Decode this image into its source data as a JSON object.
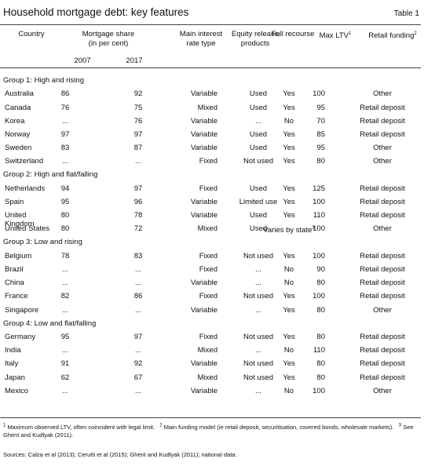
{
  "header": {
    "title": "Household mortgage debt: key features",
    "table_label": "Table 1"
  },
  "columns": {
    "country": "Country",
    "share": "Mortgage share",
    "share_unit": "(in per cent)",
    "year1": "2007",
    "year2": "2017",
    "interest_1": "Main interest",
    "interest_2": "rate type",
    "equity_1": "Equity release",
    "equity_2": "products",
    "recourse": "Full recourse",
    "ltv": "Max LTV",
    "ltv_sup": "1",
    "funding": "Retail funding",
    "funding_sup": "2"
  },
  "groups": [
    {
      "title": "Group 1: High and rising",
      "rows": [
        [
          "Australia",
          86,
          92,
          "Variable",
          "Used",
          "Yes",
          100,
          "Other"
        ],
        [
          "Canada",
          76,
          75,
          "Mixed",
          "Used",
          "Yes",
          95,
          "Retail deposit"
        ],
        [
          "Korea",
          "...",
          76,
          "Variable",
          "...",
          "No",
          70,
          "Retail deposit"
        ],
        [
          "Norway",
          97,
          97,
          "Variable",
          "Used",
          "Yes",
          85,
          "Retail deposit"
        ],
        [
          "Sweden",
          83,
          87,
          "Variable",
          "Used",
          "Yes",
          95,
          "Other"
        ],
        [
          "Switzerland",
          "...",
          "...",
          "Fixed",
          "Not used",
          "Yes",
          80,
          "Other"
        ]
      ]
    },
    {
      "title": "Group 2: High and flat/falling",
      "rows": [
        [
          "Netherlands",
          94,
          97,
          "Fixed",
          "Used",
          "Yes",
          125,
          "Retail deposit"
        ],
        [
          "Spain",
          95,
          96,
          "Variable",
          "Limited use",
          "Yes",
          100,
          "Retail deposit"
        ],
        [
          "United Kingdom",
          80,
          78,
          "Variable",
          "Used",
          "Yes",
          110,
          "Retail deposit"
        ],
        [
          "United States",
          80,
          72,
          "Mixed",
          "Used",
          "Varies by state",
          100,
          "Other"
        ]
      ]
    },
    {
      "title": "Group 3: Low and rising",
      "rows": [
        [
          "Belgium",
          78,
          83,
          "Fixed",
          "Not used",
          "Yes",
          100,
          "Retail deposit"
        ],
        [
          "Brazil",
          "...",
          "...",
          "Fixed",
          "...",
          "No",
          90,
          "Retail deposit"
        ],
        [
          "China",
          "...",
          "...",
          "Variable",
          "...",
          "No",
          80,
          "Retail deposit"
        ],
        [
          "France",
          82,
          86,
          "Fixed",
          "Not used",
          "Yes",
          100,
          "Retail deposit"
        ],
        [
          "Singapore",
          "...",
          "...",
          "Variable",
          "...",
          "Yes",
          80,
          "Other"
        ]
      ]
    },
    {
      "title": "Group 4: Low and flat/falling",
      "rows": [
        [
          "Germany",
          95,
          97,
          "Fixed",
          "Not used",
          "Yes",
          80,
          "Retail deposit"
        ],
        [
          "India",
          "...",
          "...",
          "Mixed",
          "...",
          "No",
          110,
          "Retail deposit"
        ],
        [
          "Italy",
          91,
          92,
          "Variable",
          "Not used",
          "Yes",
          80,
          "Retail deposit"
        ],
        [
          "Japan",
          62,
          67,
          "Mixed",
          "Not used",
          "Yes",
          80,
          "Retail deposit"
        ],
        [
          "Mexico",
          "...",
          "...",
          "Variable",
          "...",
          "No",
          100,
          "Other"
        ]
      ]
    }
  ],
  "recourse_sup": "3",
  "notes": [
    {
      "marker": "1",
      "text": "Maximum observed LTV, often coincident with legal limit."
    },
    {
      "marker": "2",
      "text": "Main funding model (ie retail deposit, securitisation, covered bonds, wholesale markets)."
    },
    {
      "marker": "3",
      "text": "See Ghent and Kudlyak (2011)."
    }
  ],
  "sources": "Sources: Calza et al (2013); Cerutti et al (2015); Ghent and Kudlyak (2011); national data."
}
